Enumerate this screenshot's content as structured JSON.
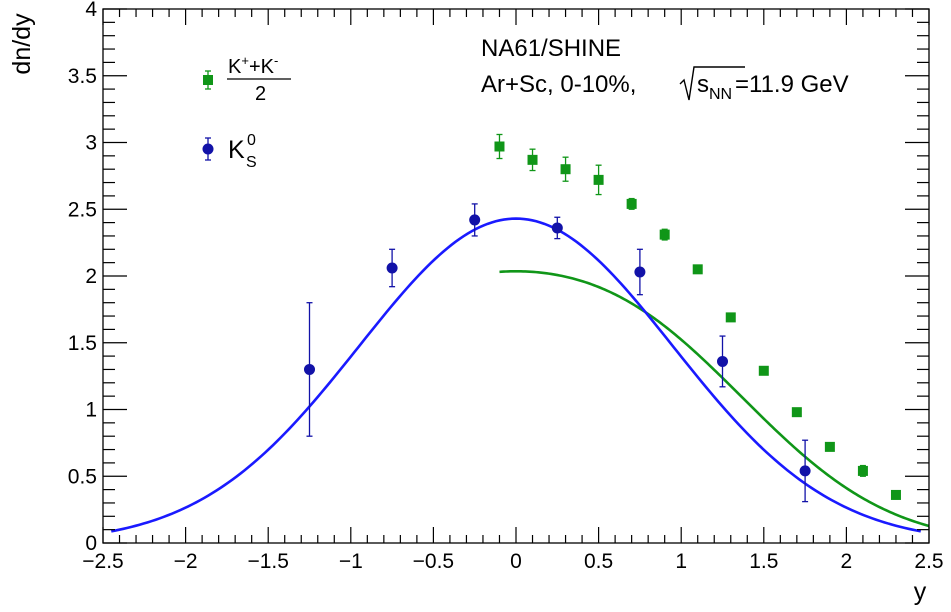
{
  "chart_data": {
    "type": "scatter",
    "ylabel": "dn/dy",
    "xlabel": "y",
    "xlim": [
      -2.5,
      2.5
    ],
    "ylim": [
      0,
      4
    ],
    "x_ticks": [
      "−2.5",
      "−2",
      "−1.5",
      "−1",
      "−0.5",
      "0",
      "0.5",
      "1",
      "1.5",
      "2",
      "2.5"
    ],
    "y_ticks": [
      "0",
      "0.5",
      "1",
      "1.5",
      "2",
      "2.5",
      "3",
      "3.5",
      "4"
    ],
    "annotation": {
      "line1": "NA61/SHINE",
      "line2_prefix": "Ar+Sc, 0-10%, ",
      "sqrt_s": "s",
      "sqrt_sub": "NN",
      "line2_suffix": "=11.9 GeV"
    },
    "legend_placement": "top-left",
    "legend": [
      {
        "marker": "square",
        "label_num_a": "K",
        "sup_a": "+",
        "plus": "+K",
        "sup_b": "-",
        "label_den": "2"
      },
      {
        "marker": "circle",
        "label_main": "K",
        "sup": "0",
        "sub": "S"
      }
    ],
    "series": [
      {
        "id": "kpm",
        "color": "#109618",
        "marker": "square",
        "points": [
          {
            "x": -0.1,
            "y": 2.97,
            "err": 0.09
          },
          {
            "x": 0.1,
            "y": 2.87,
            "err": 0.08
          },
          {
            "x": 0.3,
            "y": 2.8,
            "err": 0.09
          },
          {
            "x": 0.5,
            "y": 2.72,
            "err": 0.11
          },
          {
            "x": 0.7,
            "y": 2.54,
            "err": 0.04
          },
          {
            "x": 0.9,
            "y": 2.31,
            "err": 0.04
          },
          {
            "x": 1.1,
            "y": 2.05,
            "err": 0.03
          },
          {
            "x": 1.3,
            "y": 1.69,
            "err": 0.03
          },
          {
            "x": 1.5,
            "y": 1.29,
            "err": 0.03
          },
          {
            "x": 1.7,
            "y": 0.98,
            "err": 0.03
          },
          {
            "x": 1.9,
            "y": 0.72,
            "err": 0.03
          },
          {
            "x": 2.1,
            "y": 0.54,
            "err": 0.04
          },
          {
            "x": 2.3,
            "y": 0.36,
            "err": 0.03
          }
        ],
        "fit": {
          "amplitude": 1.45,
          "mu": 0.69,
          "sigma": 0.82,
          "x_range": [
            -0.1,
            2.5
          ]
        }
      },
      {
        "id": "k0s",
        "color": "#1212a8",
        "marker": "circle",
        "points": [
          {
            "x": -1.25,
            "y": 1.3,
            "err": 0.5
          },
          {
            "x": -0.75,
            "y": 2.06,
            "err": 0.14
          },
          {
            "x": -0.25,
            "y": 2.42,
            "err": 0.12
          },
          {
            "x": 0.25,
            "y": 2.36,
            "err": 0.08
          },
          {
            "x": 0.75,
            "y": 2.03,
            "err": 0.17
          },
          {
            "x": 1.25,
            "y": 1.36,
            "err": 0.19
          },
          {
            "x": 1.75,
            "y": 0.54,
            "err": 0.23
          }
        ],
        "fit": {
          "mu": 0.0,
          "sigma": 0.95,
          "peak": 2.43,
          "x_range": [
            -2.45,
            2.45
          ],
          "line_color": "#1a1aff"
        }
      }
    ]
  }
}
